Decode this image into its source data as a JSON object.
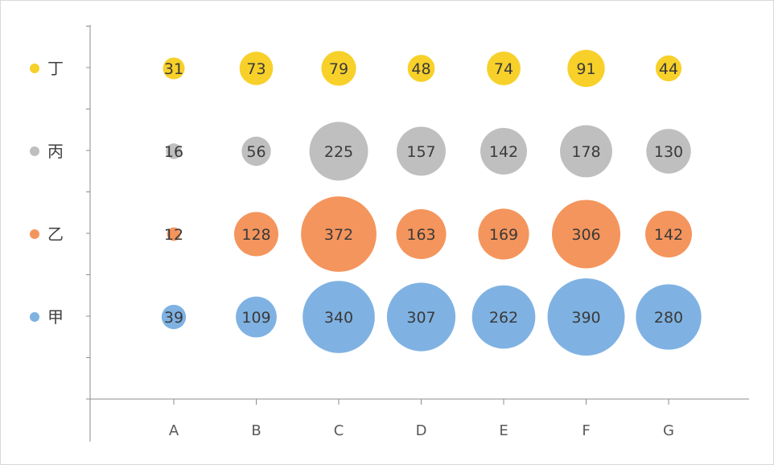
{
  "chart_data": {
    "type": "bubble",
    "categories": [
      "A",
      "B",
      "C",
      "D",
      "E",
      "F",
      "G"
    ],
    "series": [
      {
        "name": "甲",
        "color": "#7fb2e2",
        "values": [
          39,
          109,
          340,
          307,
          262,
          390,
          280
        ]
      },
      {
        "name": "乙",
        "color": "#f4955d",
        "values": [
          12,
          128,
          372,
          163,
          169,
          306,
          142
        ]
      },
      {
        "name": "丙",
        "color": "#bfbfbf",
        "values": [
          16,
          56,
          225,
          157,
          142,
          178,
          130
        ]
      },
      {
        "name": "丁",
        "color": "#f7d02a",
        "values": [
          31,
          73,
          79,
          48,
          74,
          91,
          44
        ]
      }
    ],
    "title": "",
    "xlabel": "",
    "ylabel": "",
    "grid": false,
    "legend_position": "left"
  }
}
